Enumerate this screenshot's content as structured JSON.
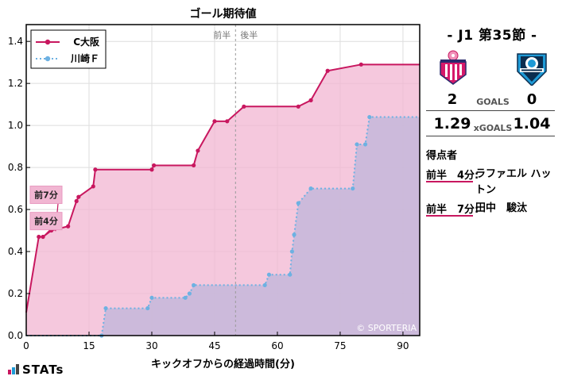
{
  "chart_data": {
    "type": "line",
    "title": "ゴール期待値",
    "xlabel": "キックオフからの経過時間(分)",
    "ylabel": "",
    "xlim": [
      0,
      94
    ],
    "ylim": [
      0,
      1.48
    ],
    "xticks": [
      0,
      15,
      30,
      45,
      60,
      75,
      90
    ],
    "yticks": [
      0.0,
      0.2,
      0.4,
      0.6,
      0.8,
      1.0,
      1.2,
      1.4
    ],
    "halftime": 50,
    "halftime_labels": {
      "first": "前半",
      "second": "後半"
    },
    "legend_position": "top-left",
    "watermark": "© SPORTERIA",
    "annotations": [
      {
        "label": "前7分",
        "x": 7,
        "y": 0.497,
        "box_y": 0.67
      },
      {
        "label": "前4分",
        "x": 4,
        "y": 0.47,
        "box_y": 0.545
      }
    ],
    "series": [
      {
        "name": "C大阪",
        "color": "#c8175f",
        "fill": "#f1b6d2",
        "style": "solid",
        "points": [
          [
            0,
            0.11
          ],
          [
            3,
            0.47
          ],
          [
            4,
            0.47
          ],
          [
            6,
            0.5
          ],
          [
            10,
            0.52
          ],
          [
            12,
            0.64
          ],
          [
            12.5,
            0.66
          ],
          [
            16,
            0.71
          ],
          [
            16.5,
            0.79
          ],
          [
            30,
            0.79
          ],
          [
            30.5,
            0.81
          ],
          [
            40,
            0.81
          ],
          [
            41,
            0.88
          ],
          [
            45,
            1.02
          ],
          [
            48,
            1.02
          ],
          [
            52,
            1.09
          ],
          [
            65,
            1.09
          ],
          [
            68,
            1.12
          ],
          [
            72,
            1.26
          ],
          [
            80,
            1.29
          ],
          [
            94,
            1.29
          ]
        ]
      },
      {
        "name": "川崎Ｆ",
        "color": "#6db1e2",
        "fill": "#c2b7db",
        "style": "dotted",
        "points": [
          [
            0,
            0.0
          ],
          [
            18,
            0.0
          ],
          [
            19,
            0.13
          ],
          [
            29,
            0.13
          ],
          [
            30,
            0.18
          ],
          [
            38,
            0.18
          ],
          [
            39,
            0.2
          ],
          [
            40,
            0.24
          ],
          [
            57,
            0.24
          ],
          [
            58,
            0.29
          ],
          [
            63,
            0.29
          ],
          [
            63.5,
            0.4
          ],
          [
            64,
            0.48
          ],
          [
            65,
            0.63
          ],
          [
            68,
            0.7
          ],
          [
            78,
            0.7
          ],
          [
            79,
            0.91
          ],
          [
            81,
            0.91
          ],
          [
            82,
            1.04
          ],
          [
            94,
            1.04
          ]
        ]
      }
    ]
  },
  "panel": {
    "title": "- J1 第35節 -",
    "goals_label": "GOALS",
    "xgoals_label": "xGOALS",
    "home": {
      "goals": "2",
      "xg": "1.29",
      "crest_icon": "cerezo-osaka-crest"
    },
    "away": {
      "goals": "0",
      "xg": "1.04",
      "crest_icon": "kawasaki-frontale-crest"
    },
    "scorers_title": "得点者",
    "scorers": [
      {
        "half": "前半　4分:",
        "name": "ラファエル ハットン"
      },
      {
        "half": "前半　7分:",
        "name": "田中　駿汰"
      }
    ]
  },
  "brand": {
    "logo": "STATs",
    "colors": [
      "#c8175f",
      "#1e9ad6",
      "#444444"
    ]
  }
}
